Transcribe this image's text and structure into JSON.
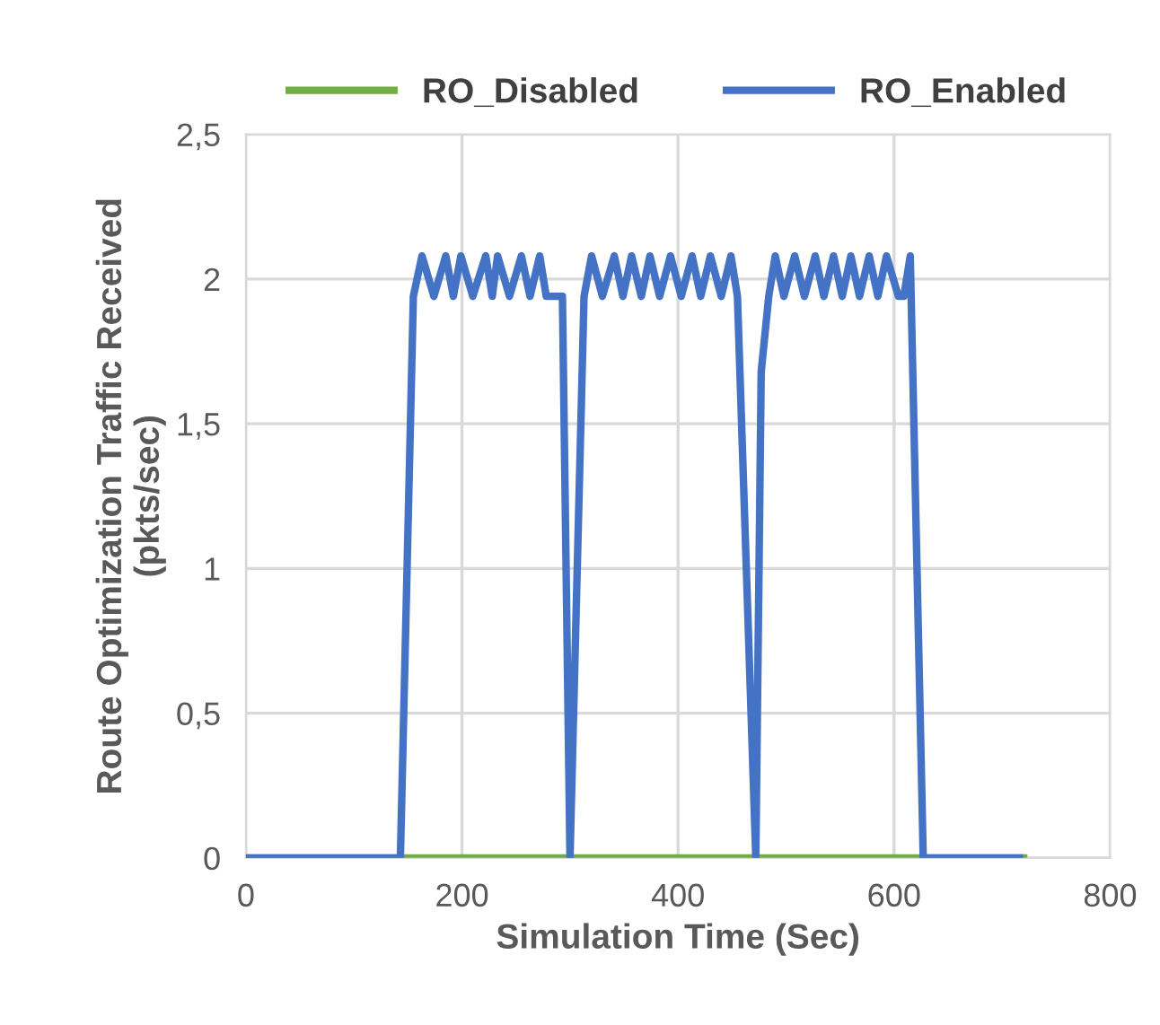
{
  "chart_data": {
    "type": "line",
    "xlabel": "Simulation Time (Sec)",
    "ylabel": "Route Optimization Traffic Received\n(pkts/sec)",
    "xlim": [
      0,
      800
    ],
    "xticks": [
      0,
      200,
      400,
      600,
      800
    ],
    "ylim": [
      0,
      2.5
    ],
    "yticks": [
      {
        "value": 0,
        "label": "0"
      },
      {
        "value": 0.5,
        "label": "0,5"
      },
      {
        "value": 1,
        "label": "1"
      },
      {
        "value": 1.5,
        "label": "1,5"
      },
      {
        "value": 2,
        "label": "2"
      },
      {
        "value": 2.5,
        "label": "2,5"
      }
    ],
    "grid": true,
    "legend": "top",
    "marker": "none",
    "line_style": "solid",
    "series": [
      {
        "name": "RO_Disabled",
        "color": "#70ad47",
        "x": [
          0,
          720
        ],
        "values": [
          0,
          0
        ]
      },
      {
        "name": "RO_Enabled",
        "color": "#4472c4",
        "x": [
          0,
          143,
          155,
          163,
          174,
          185,
          192,
          199,
          210,
          222,
          228,
          233,
          244,
          255,
          263,
          272,
          278,
          293,
          300,
          313,
          320,
          330,
          341,
          349,
          357,
          366,
          374,
          383,
          393,
          403,
          413,
          421,
          430,
          440,
          449,
          455,
          472,
          477,
          484,
          490,
          498,
          508,
          517,
          527,
          535,
          544,
          552,
          560,
          568,
          577,
          585,
          593,
          604,
          609,
          615,
          627,
          716
        ],
        "values": [
          0,
          0,
          1.94,
          2.08,
          1.94,
          2.08,
          1.94,
          2.08,
          1.94,
          2.08,
          1.94,
          2.08,
          1.94,
          2.08,
          1.94,
          2.08,
          1.94,
          1.94,
          0,
          1.94,
          2.08,
          1.94,
          2.08,
          1.94,
          2.08,
          1.94,
          2.08,
          1.94,
          2.08,
          1.94,
          2.08,
          1.94,
          2.08,
          1.94,
          2.08,
          1.94,
          0,
          1.68,
          1.94,
          2.08,
          1.94,
          2.08,
          1.94,
          2.08,
          1.94,
          2.08,
          1.94,
          2.08,
          1.94,
          2.08,
          1.94,
          2.08,
          1.94,
          1.94,
          2.08,
          0,
          0
        ]
      }
    ]
  }
}
